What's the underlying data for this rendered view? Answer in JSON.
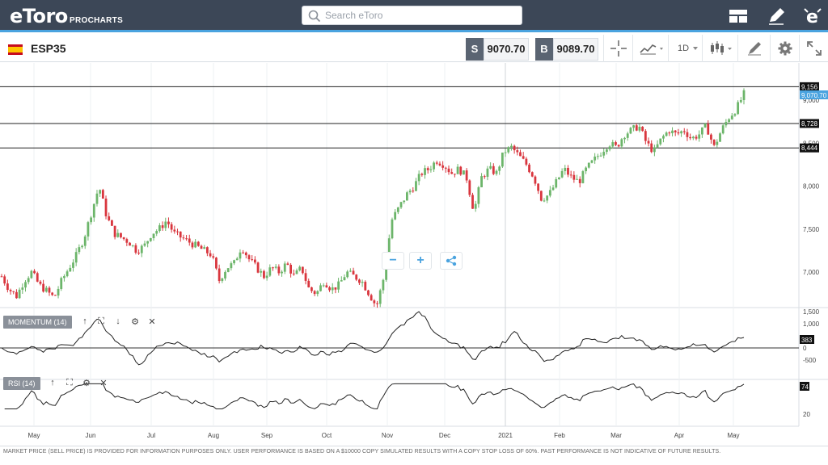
{
  "header": {
    "logo_text": "eToro",
    "logo_sub": "PROCHARTS",
    "search_placeholder": "Search eToro",
    "icons": [
      "layout-icon",
      "pencil-icon",
      "etoro-e-icon"
    ]
  },
  "instrument": {
    "symbol": "ESP35",
    "sell_label": "S",
    "sell_price": "9070.70",
    "buy_label": "B",
    "buy_price": "9089.70",
    "timeframe": "1D"
  },
  "toolbar_icons": [
    "crosshair-icon",
    "chart-type-icon",
    "timeframe-dropdown",
    "indicators-icon",
    "draw-tools-icon",
    "settings-icon",
    "expand-icon"
  ],
  "price_axis": {
    "ticks": [
      "9,000",
      "8,500",
      "8,000",
      "7,500",
      "7,000"
    ],
    "tick_values": [
      9000,
      8500,
      8000,
      7500,
      7000
    ],
    "levels": [
      {
        "label": "9,156",
        "value": 9156
      },
      {
        "label": "8,728",
        "value": 8728
      },
      {
        "label": "8,444",
        "value": 8444
      }
    ],
    "current_label": "9,070.70",
    "current_value": 9070.7,
    "current_color": "#4aa3df"
  },
  "x_axis": {
    "labels": [
      "May",
      "Jun",
      "Jul",
      "Aug",
      "Sep",
      "Oct",
      "Nov",
      "Dec",
      "2021",
      "Feb",
      "Mar",
      "Apr",
      "May"
    ]
  },
  "momentum": {
    "label": "MOMENTUM (14)",
    "ticks": [
      "1,500",
      "1,000",
      "0",
      "-500"
    ],
    "tick_values": [
      1500,
      1000,
      0,
      -500
    ],
    "current_label": "383"
  },
  "rsi": {
    "label": "RSI (14)",
    "ticks": [
      "20"
    ],
    "tick_values": [
      20
    ],
    "current_label": "74"
  },
  "zoom_controls": {
    "minus": "−",
    "plus": "+"
  },
  "footer_text": "MARKET PRICE (SELL PRICE) IS PROVIDED FOR INFORMATION PURPOSES ONLY. USER PERFORMANCE IS BASED ON A $10000 COPY SIMULATED RESULTS WITH A COPY STOP LOSS OF 60%. PAST PERFORMANCE IS NOT INDICATIVE OF FUTURE RESULTS.",
  "colors": {
    "up": "#6cb56a",
    "down": "#d9363e",
    "topbar": "#3c4757",
    "accent": "#4aa3df"
  },
  "chart_data": {
    "type": "line",
    "series": [
      {
        "values": [
          6950,
          6800,
          6720,
          6900,
          7000,
          6850,
          6780,
          6700,
          6900,
          7050,
          7200,
          7400,
          7700,
          8000,
          7650,
          7450,
          7400,
          7350,
          7250,
          7300,
          7450,
          7500,
          7600,
          7450,
          7400,
          7350,
          7300,
          7250,
          7200,
          6900,
          7050,
          7100,
          7300,
          7150,
          7050,
          6950,
          7050,
          7000,
          7100,
          6950,
          7050,
          6800,
          6750,
          6900,
          6800,
          6850,
          7000,
          6950,
          6900,
          6750,
          6600,
          6950,
          7600,
          7750,
          7900,
          8000,
          8150,
          8200,
          8300,
          8250,
          8150,
          8200,
          8100,
          7700,
          8100,
          8200,
          8150,
          8400,
          8450,
          8350,
          8250,
          8100,
          7850,
          7900,
          8050,
          8200,
          8100,
          8050,
          8200,
          8300,
          8400,
          8500,
          8450,
          8600,
          8650,
          8700,
          8500,
          8400,
          8550,
          8650,
          8600,
          8650,
          8550,
          8600,
          8700,
          8450,
          8650,
          8800,
          8900,
          9070
        ]
      }
    ]
  }
}
